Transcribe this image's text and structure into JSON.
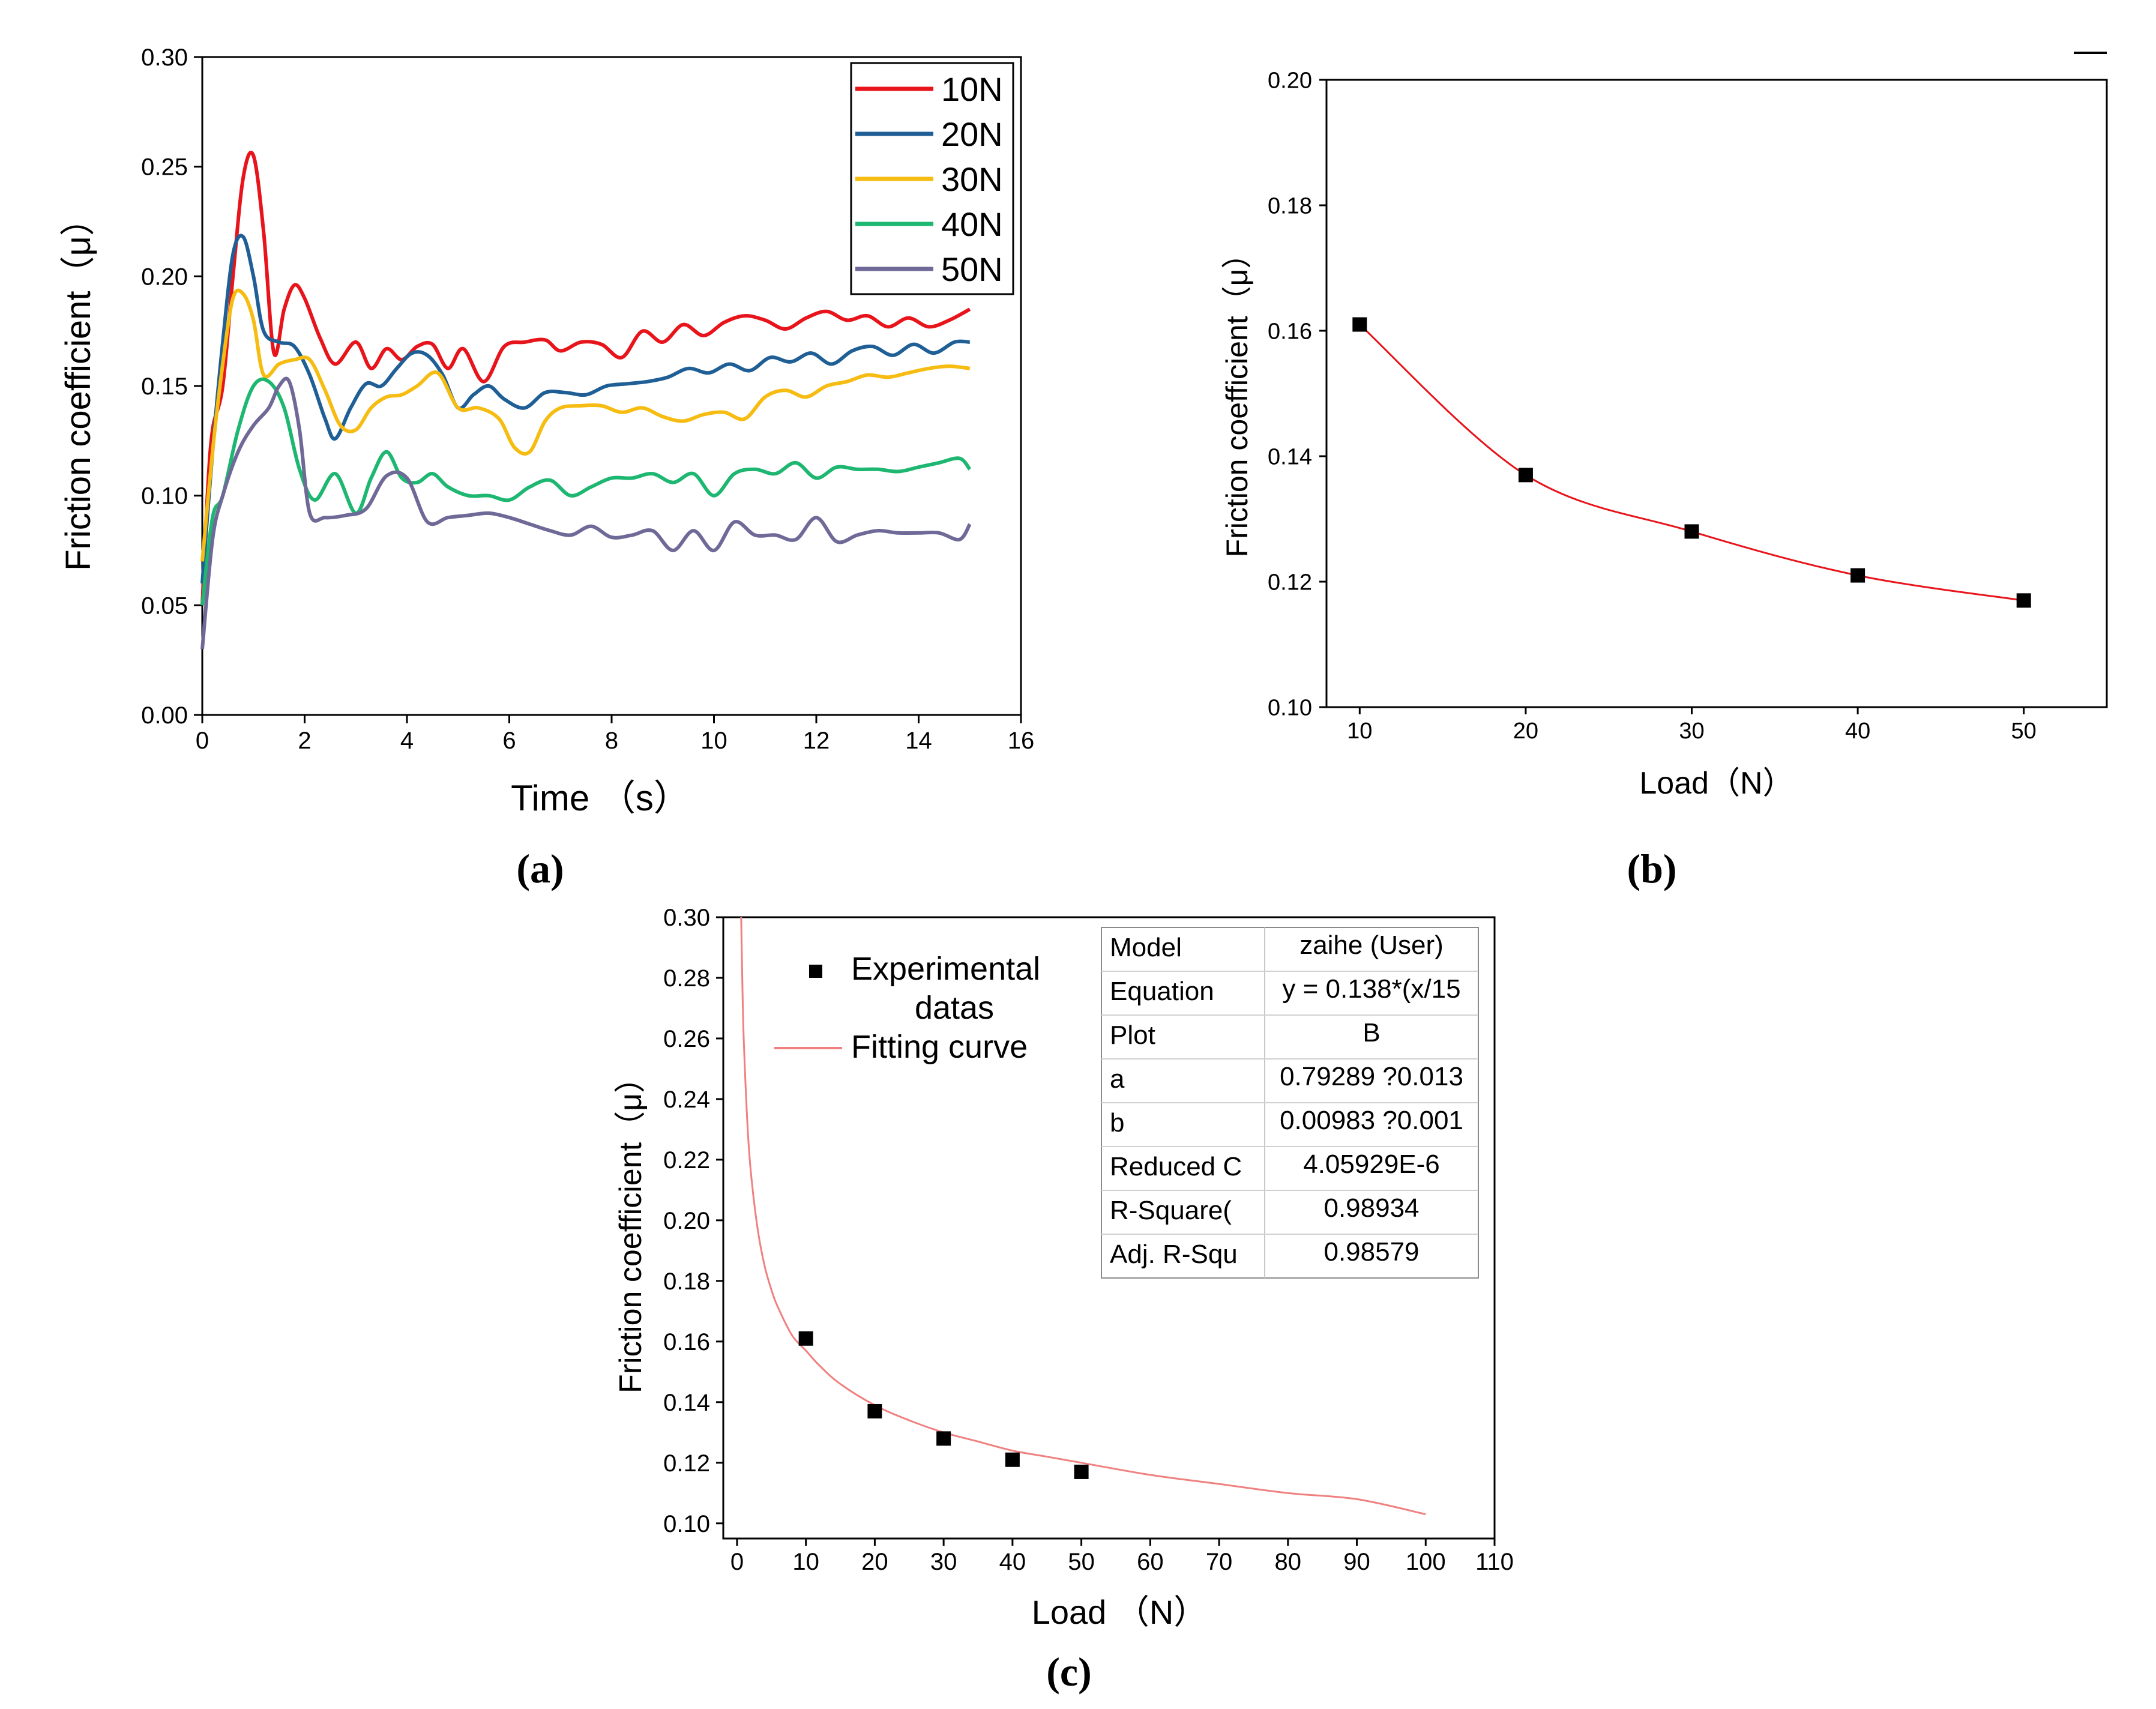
{
  "chart_data": [
    {
      "id": "a",
      "panel_label": "(a)",
      "type": "line",
      "xlabel": "Time （s）",
      "ylabel": "Friction coefficient（μ）",
      "xlim": [
        0,
        16
      ],
      "ylim": [
        0,
        0.3
      ],
      "xticks": [
        "0",
        "2",
        "4",
        "6",
        "8",
        "10",
        "12",
        "14",
        "16"
      ],
      "yticks": [
        "0.00",
        "0.05",
        "0.10",
        "0.15",
        "0.20",
        "0.25",
        "0.30"
      ],
      "legend_position": "top-right",
      "series": [
        {
          "name": "10N",
          "color": "#e8141b",
          "x": [
            0,
            0.1,
            0.2,
            0.4,
            0.6,
            0.8,
            1.0,
            1.2,
            1.4,
            1.6,
            1.8,
            2.0,
            2.3,
            2.6,
            3.0,
            3.3,
            3.6,
            3.9,
            4.2,
            4.5,
            4.8,
            5.1,
            5.5,
            5.9,
            6.3,
            6.7,
            7.0,
            7.4,
            7.8,
            8.2,
            8.6,
            9.0,
            9.4,
            9.8,
            10.2,
            10.6,
            11.0,
            11.4,
            11.8,
            12.2,
            12.6,
            13.0,
            13.4,
            13.8,
            14.2,
            14.6,
            15.0
          ],
          "y": [
            0.05,
            0.1,
            0.13,
            0.15,
            0.2,
            0.245,
            0.255,
            0.22,
            0.165,
            0.185,
            0.196,
            0.19,
            0.172,
            0.16,
            0.17,
            0.158,
            0.167,
            0.162,
            0.168,
            0.169,
            0.158,
            0.167,
            0.152,
            0.168,
            0.17,
            0.171,
            0.166,
            0.17,
            0.169,
            0.163,
            0.175,
            0.17,
            0.178,
            0.173,
            0.179,
            0.182,
            0.18,
            0.176,
            0.181,
            0.184,
            0.18,
            0.182,
            0.177,
            0.181,
            0.177,
            0.18,
            0.185
          ]
        },
        {
          "name": "20N",
          "color": "#1f5f96",
          "x": [
            0,
            0.2,
            0.4,
            0.6,
            0.8,
            1.0,
            1.2,
            1.5,
            1.8,
            2.1,
            2.4,
            2.6,
            2.9,
            3.2,
            3.5,
            3.8,
            4.1,
            4.4,
            4.7,
            5.0,
            5.3,
            5.6,
            5.9,
            6.3,
            6.7,
            7.1,
            7.5,
            7.9,
            8.3,
            8.7,
            9.1,
            9.5,
            9.9,
            10.3,
            10.7,
            11.1,
            11.5,
            11.9,
            12.3,
            12.7,
            13.1,
            13.5,
            13.9,
            14.3,
            14.7,
            15.0
          ],
          "y": [
            0.06,
            0.12,
            0.17,
            0.21,
            0.218,
            0.2,
            0.175,
            0.17,
            0.168,
            0.155,
            0.135,
            0.126,
            0.14,
            0.151,
            0.15,
            0.158,
            0.165,
            0.164,
            0.155,
            0.14,
            0.146,
            0.15,
            0.144,
            0.14,
            0.147,
            0.147,
            0.146,
            0.15,
            0.151,
            0.152,
            0.154,
            0.158,
            0.156,
            0.16,
            0.157,
            0.163,
            0.161,
            0.165,
            0.16,
            0.166,
            0.168,
            0.164,
            0.169,
            0.165,
            0.17,
            0.17
          ]
        },
        {
          "name": "30N",
          "color": "#f6bc11",
          "x": [
            0,
            0.2,
            0.4,
            0.6,
            0.8,
            1.0,
            1.2,
            1.5,
            1.8,
            2.1,
            2.4,
            2.7,
            3.0,
            3.3,
            3.6,
            3.9,
            4.2,
            4.6,
            5.0,
            5.4,
            5.8,
            6.1,
            6.4,
            6.7,
            7.0,
            7.4,
            7.8,
            8.2,
            8.6,
            9.0,
            9.4,
            9.8,
            10.2,
            10.6,
            11.0,
            11.4,
            11.8,
            12.2,
            12.6,
            13.0,
            13.4,
            13.8,
            14.2,
            14.6,
            15.0
          ],
          "y": [
            0.07,
            0.12,
            0.16,
            0.19,
            0.192,
            0.18,
            0.155,
            0.16,
            0.162,
            0.162,
            0.148,
            0.132,
            0.13,
            0.14,
            0.145,
            0.146,
            0.15,
            0.156,
            0.14,
            0.14,
            0.135,
            0.122,
            0.12,
            0.134,
            0.14,
            0.141,
            0.141,
            0.138,
            0.14,
            0.136,
            0.134,
            0.137,
            0.138,
            0.135,
            0.145,
            0.148,
            0.145,
            0.15,
            0.152,
            0.155,
            0.154,
            0.156,
            0.158,
            0.159,
            0.158
          ]
        },
        {
          "name": "40N",
          "color": "#1db771",
          "x": [
            0,
            0.2,
            0.4,
            0.7,
            1.0,
            1.3,
            1.6,
            1.9,
            2.2,
            2.6,
            3.0,
            3.3,
            3.6,
            3.9,
            4.2,
            4.5,
            4.8,
            5.2,
            5.6,
            6.0,
            6.4,
            6.8,
            7.2,
            7.6,
            8.0,
            8.4,
            8.8,
            9.2,
            9.6,
            10.0,
            10.4,
            10.8,
            11.2,
            11.6,
            12.0,
            12.4,
            12.8,
            13.2,
            13.6,
            14.0,
            14.4,
            14.8,
            15.0
          ],
          "y": [
            0.05,
            0.09,
            0.1,
            0.13,
            0.15,
            0.152,
            0.14,
            0.112,
            0.098,
            0.11,
            0.092,
            0.108,
            0.12,
            0.108,
            0.106,
            0.11,
            0.104,
            0.1,
            0.1,
            0.098,
            0.104,
            0.107,
            0.1,
            0.104,
            0.108,
            0.108,
            0.11,
            0.106,
            0.11,
            0.1,
            0.11,
            0.112,
            0.11,
            0.115,
            0.108,
            0.113,
            0.112,
            0.112,
            0.111,
            0.113,
            0.115,
            0.117,
            0.112
          ]
        },
        {
          "name": "50N",
          "color": "#6e6997",
          "x": [
            0,
            0.2,
            0.4,
            0.7,
            1.0,
            1.3,
            1.5,
            1.7,
            1.9,
            2.1,
            2.4,
            2.8,
            3.2,
            3.6,
            4.0,
            4.4,
            4.8,
            5.2,
            5.6,
            6.0,
            6.4,
            6.8,
            7.2,
            7.6,
            8.0,
            8.4,
            8.8,
            9.2,
            9.6,
            10.0,
            10.4,
            10.8,
            11.2,
            11.6,
            12.0,
            12.4,
            12.8,
            13.2,
            13.6,
            14.0,
            14.4,
            14.8,
            15.0
          ],
          "y": [
            0.03,
            0.08,
            0.1,
            0.12,
            0.132,
            0.14,
            0.15,
            0.152,
            0.13,
            0.092,
            0.09,
            0.091,
            0.094,
            0.109,
            0.108,
            0.088,
            0.09,
            0.091,
            0.092,
            0.09,
            0.087,
            0.084,
            0.082,
            0.086,
            0.081,
            0.082,
            0.084,
            0.075,
            0.084,
            0.075,
            0.088,
            0.082,
            0.082,
            0.08,
            0.09,
            0.079,
            0.082,
            0.084,
            0.083,
            0.083,
            0.083,
            0.08,
            0.087
          ]
        }
      ]
    },
    {
      "id": "b",
      "panel_label": "(b)",
      "type": "line",
      "xlabel": "Load（N）",
      "ylabel": "Friction coefficient（μ）",
      "xlim": [
        8,
        55
      ],
      "ylim": [
        0.1,
        0.2
      ],
      "xticks": [
        "10",
        "20",
        "30",
        "40",
        "50"
      ],
      "yticks": [
        "0.10",
        "0.12",
        "0.14",
        "0.16",
        "0.18",
        "0.20"
      ],
      "series": [
        {
          "name": "Friction coefficient",
          "color": "#e8141b",
          "marker": "square",
          "x": [
            10,
            20,
            30,
            40,
            50
          ],
          "y": [
            0.161,
            0.137,
            0.128,
            0.121,
            0.117
          ]
        }
      ]
    },
    {
      "id": "c",
      "panel_label": "(c)",
      "type": "scatter",
      "xlabel": "Load （N）",
      "ylabel": "Friction coefficient（μ）",
      "xlim": [
        -2,
        110
      ],
      "ylim": [
        0.095,
        0.3
      ],
      "xticks": [
        "0",
        "10",
        "20",
        "30",
        "40",
        "50",
        "60",
        "70",
        "80",
        "90",
        "100",
        "110"
      ],
      "yticks": [
        "0.10",
        "0.12",
        "0.14",
        "0.16",
        "0.18",
        "0.20",
        "0.22",
        "0.24",
        "0.26",
        "0.28",
        "0.30"
      ],
      "legend": [
        "Experimental datas",
        "Fitting curve"
      ],
      "legend_position": "top-left",
      "series": [
        {
          "name": "Experimental datas",
          "color": "#000000",
          "marker": "square",
          "x": [
            10,
            20,
            30,
            40,
            50
          ],
          "y": [
            0.161,
            0.137,
            0.128,
            0.121,
            0.117
          ]
        },
        {
          "name": "Fitting curve",
          "color": "#f08080",
          "x": [
            0.6,
            0.8,
            1,
            1.5,
            2,
            3,
            4,
            5,
            6,
            8,
            10,
            12,
            15,
            20,
            25,
            30,
            35,
            40,
            45,
            50,
            60,
            70,
            80,
            90,
            100
          ],
          "y": [
            0.3,
            0.275,
            0.258,
            0.232,
            0.216,
            0.197,
            0.185,
            0.177,
            0.171,
            0.162,
            0.157,
            0.152,
            0.146,
            0.139,
            0.134,
            0.13,
            0.127,
            0.124,
            0.122,
            0.12,
            0.116,
            0.113,
            0.11,
            0.108,
            0.103
          ]
        }
      ],
      "fit_table": {
        "rows": [
          [
            "Model",
            "zaihe (User)"
          ],
          [
            "Equation",
            "y = 0.138*(x/15"
          ],
          [
            "Plot",
            "B"
          ],
          [
            "a",
            "0.79289 ?0.013"
          ],
          [
            "b",
            "0.00983 ?0.001"
          ],
          [
            "Reduced C",
            "4.05929E-6"
          ],
          [
            "R-Square(",
            "0.98934"
          ],
          [
            "Adj. R-Squ",
            "0.98579"
          ]
        ]
      }
    }
  ]
}
